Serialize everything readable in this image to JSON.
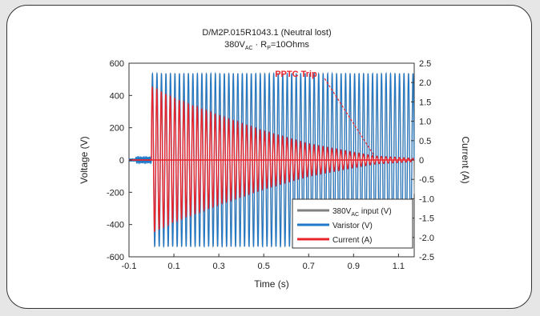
{
  "chart_data": {
    "type": "line",
    "title_line1": "D/M2P.015R1043.1 (Neutral lost)",
    "title_line2_main": "380V",
    "title_line2_sub": "AC",
    "title_line2_rest": "· R",
    "title_line2_rsub": "P",
    "title_line2_end": "=10Ohms",
    "xlabel": "Time (s)",
    "ylabel_left": "Voltage (V)",
    "ylabel_right": "Current (A)",
    "xlim": [
      -0.1,
      1.17
    ],
    "ylim_left": [
      -600,
      600
    ],
    "ylim_right": [
      -2.5,
      2.5
    ],
    "x_ticks": [
      "-0.1",
      "0.1",
      "0.3",
      "0.5",
      "0.7",
      "0.9",
      "1.1"
    ],
    "x_tick_values": [
      -0.1,
      0.1,
      0.3,
      0.5,
      0.7,
      0.9,
      1.1
    ],
    "y_left_ticks": [
      "600",
      "400",
      "200",
      "0",
      "-200",
      "-400",
      "-600"
    ],
    "y_left_tick_values": [
      600,
      400,
      200,
      0,
      -200,
      -400,
      -600
    ],
    "y_right_ticks": [
      "2.5",
      "2.0",
      "1.5",
      "1.0",
      "0.5",
      "0",
      "-0.5",
      "-1.0",
      "-1.5",
      "-2.0",
      "-2.5"
    ],
    "y_right_tick_values": [
      2.5,
      2.0,
      1.5,
      1.0,
      0.5,
      0,
      -0.5,
      -1.0,
      -1.5,
      -2.0,
      -2.5
    ],
    "annotation": {
      "label": "PPTC Trip",
      "text_at": [
        0.55,
        515
      ],
      "arrow_to": [
        0.99,
        30
      ],
      "color": "#e8242c"
    },
    "series": [
      {
        "name": "380V",
        "name_sub": "AC",
        "name_rest": " input (V)",
        "axis": "left",
        "color": "#808080",
        "frequency_hz": 50,
        "amplitude_v": 537,
        "start_time_s": 0.0,
        "pre_start_level_v": 0
      },
      {
        "name": "Varistor (V)",
        "axis": "left",
        "color": "#1f78c8",
        "frequency_hz": 50,
        "amplitude_v": 537,
        "start_time_s": 0.0,
        "pre_start_noise_v": 18
      },
      {
        "name": "Current (A)",
        "axis": "right",
        "color": "#e8242c",
        "frequency_hz": 50,
        "peak_current_a": [
          [
            0.0,
            1.9
          ],
          [
            0.1,
            1.6
          ],
          [
            0.3,
            1.15
          ],
          [
            0.5,
            0.75
          ],
          [
            0.7,
            0.42
          ],
          [
            0.9,
            0.2
          ],
          [
            1.0,
            0.1
          ],
          [
            1.17,
            0.04
          ]
        ],
        "start_time_s": 0.0
      }
    ],
    "legend_position": "bottom-right",
    "grid": false
  }
}
